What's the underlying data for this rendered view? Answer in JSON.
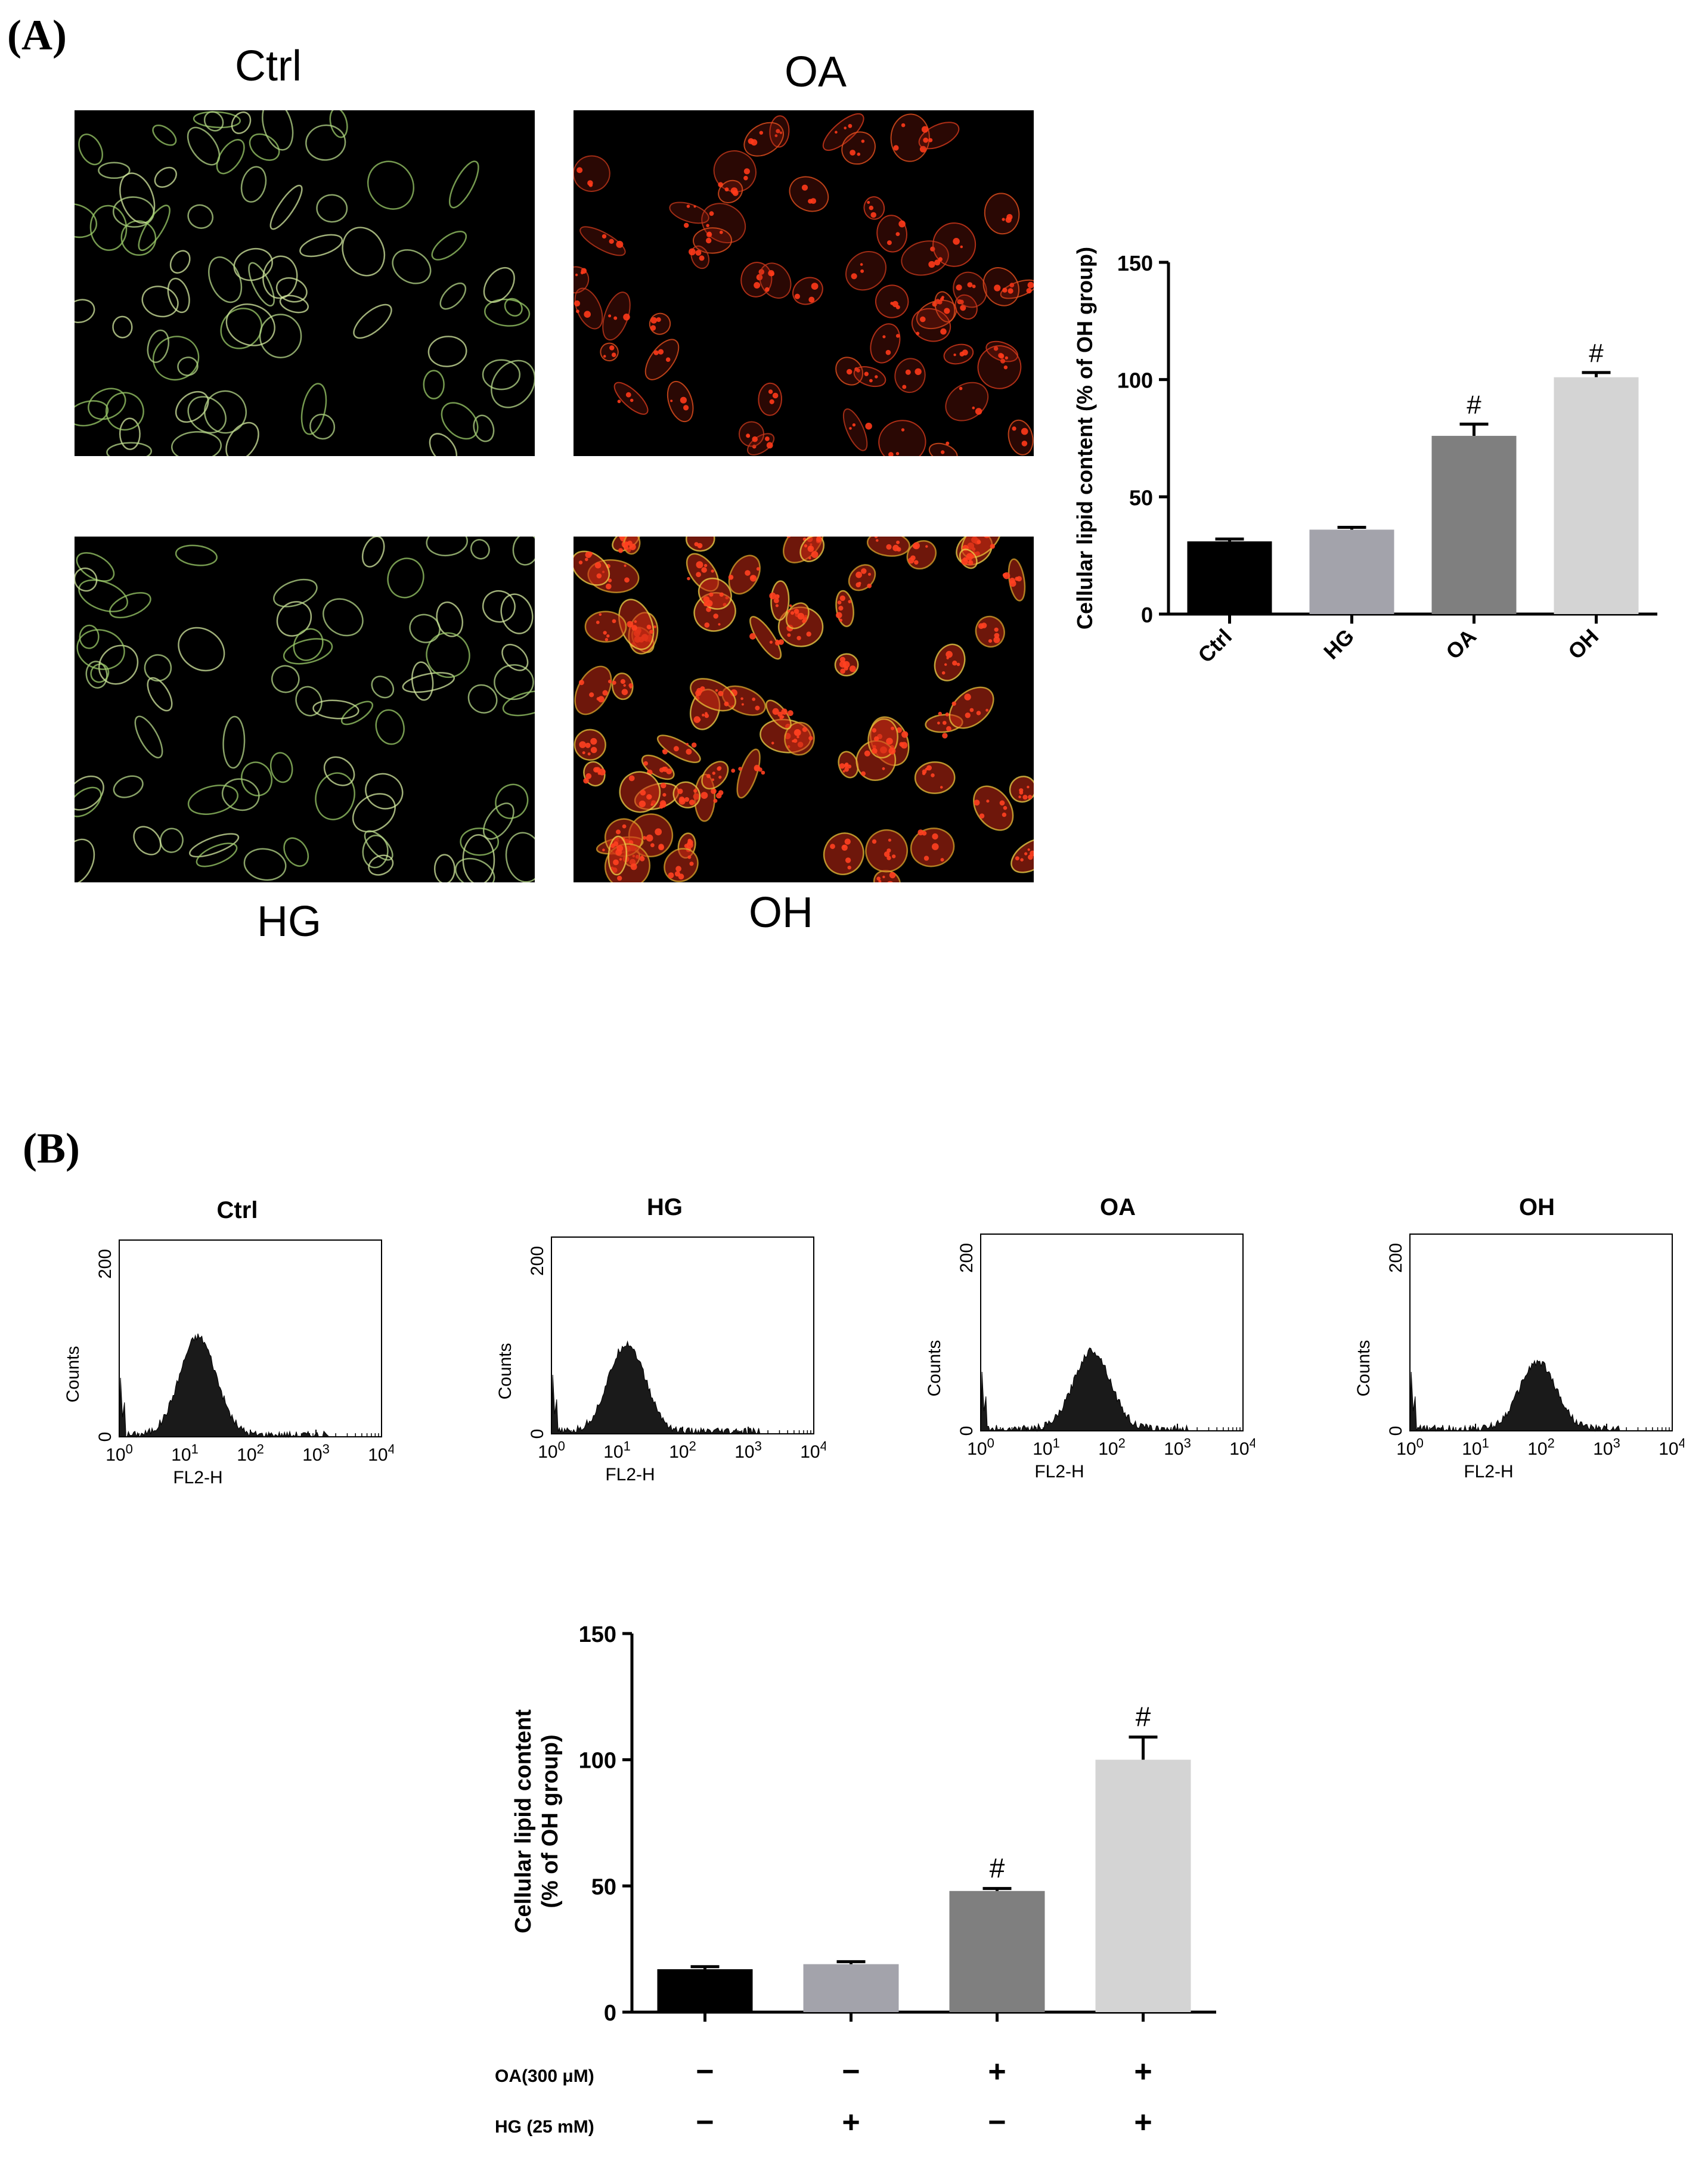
{
  "panel_a": {
    "letter": "(A)",
    "micrographs": [
      {
        "label": "Ctrl",
        "stain": "green"
      },
      {
        "label": "OA",
        "stain": "red"
      },
      {
        "label": "HG",
        "stain": "green"
      },
      {
        "label": "OH",
        "stain": "red-yellow"
      }
    ]
  },
  "panel_b": {
    "letter": "(B)",
    "histograms": [
      {
        "title": "Ctrl",
        "peak_log10": 1.2,
        "peak_count": 100
      },
      {
        "title": "HG",
        "peak_log10": 1.15,
        "peak_count": 90
      },
      {
        "title": "OA",
        "peak_log10": 1.7,
        "peak_count": 80
      },
      {
        "title": "OH",
        "peak_log10": 1.95,
        "peak_count": 68
      }
    ],
    "histogram_axes": {
      "ylabel": "Counts",
      "xlabel": "FL2-H",
      "y_top_tick": "200",
      "y_zero_tick": "0",
      "x_ticks": [
        "10",
        "10",
        "10",
        "10",
        "10"
      ],
      "x_exponents": [
        "0",
        "1",
        "2",
        "3",
        "4"
      ]
    },
    "treatment_table": {
      "rows": [
        {
          "label": "OA(300 μM)",
          "signs": [
            "−",
            "−",
            "+",
            "+"
          ]
        },
        {
          "label": "HG (25 mM)",
          "signs": [
            "−",
            "+",
            "−",
            "+"
          ]
        }
      ]
    }
  },
  "chart_data": [
    {
      "id": "panel_a_bar",
      "type": "bar",
      "categories": [
        "Ctrl",
        "HG",
        "OA",
        "OH"
      ],
      "values": [
        31,
        36,
        76,
        101
      ],
      "errors": [
        1,
        1,
        5,
        2
      ],
      "annotations": [
        "",
        "",
        "#",
        "#"
      ],
      "colors": [
        "#000000",
        "#a3a3ab",
        "#7f7f7f",
        "#d4d4d4"
      ],
      "ylabel": "Cellular lipid content (% of OH group)",
      "ylim": [
        0,
        150
      ],
      "yticks": [
        "0",
        "50",
        "100",
        "150"
      ]
    },
    {
      "id": "panel_b_bar",
      "type": "bar",
      "categories": [
        "",
        "",
        "",
        ""
      ],
      "values": [
        17,
        19,
        48,
        100
      ],
      "errors": [
        1,
        1,
        1,
        9
      ],
      "annotations": [
        "",
        "",
        "#",
        "#"
      ],
      "colors": [
        "#000000",
        "#a3a3ab",
        "#7f7f7f",
        "#d4d4d4"
      ],
      "ylabel_line1": "Cellular lipid content",
      "ylabel_line2": "(% of OH group)",
      "ylim": [
        0,
        150
      ],
      "yticks": [
        "0",
        "50",
        "100",
        "150"
      ]
    }
  ]
}
